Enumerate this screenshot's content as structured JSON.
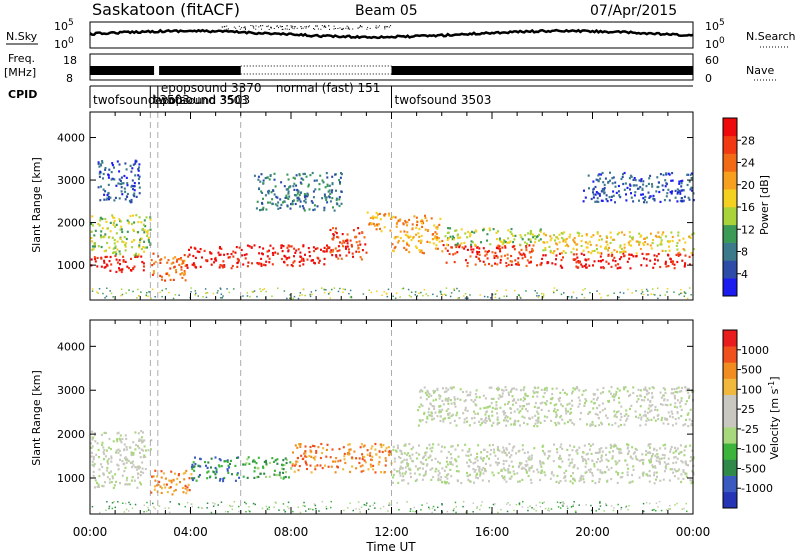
{
  "header": {
    "station": "Saskatoon (fitACF)",
    "beam": "Beam 05",
    "date": "07/Apr/2015"
  },
  "top_strips": {
    "nsky": {
      "label": "N.Sky",
      "tick_top": "10^5",
      "tick_bottom": "10^0",
      "right_label": "N.Search",
      "right_tick_top": "10^5",
      "right_tick_bottom": "10^0"
    },
    "freq": {
      "label_line1": "Freq.",
      "label_line2": "[MHz]",
      "tick_top": "18",
      "tick_bottom": "8",
      "right_label": "Nave",
      "right_tick_top": "60",
      "right_tick_bottom": "0"
    },
    "cpid": {
      "label": "CPID",
      "segments": [
        {
          "name": "twofsound 3503",
          "start_hr": 0.0,
          "end_hr": 2.4
        },
        {
          "name": "twofsound 3503",
          "start_hr": 2.4,
          "end_hr": 2.7
        },
        {
          "name": "epopsound 3370",
          "start_hr": 2.7,
          "end_hr": 6.0
        },
        {
          "name": "normal (fast) 151",
          "start_hr": 6.0,
          "end_hr": 12.0
        },
        {
          "name": "twofsound 3503",
          "start_hr": 12.0,
          "end_hr": 24.0
        }
      ],
      "overlap_label": "epopsound 3503"
    }
  },
  "x_axis": {
    "label": "Time UT",
    "ticks": [
      "00:00",
      "04:00",
      "08:00",
      "12:00",
      "16:00",
      "20:00",
      "00:00"
    ]
  },
  "chart_data": [
    {
      "type": "heatmap",
      "name": "power",
      "ylabel": "Slant Range [km]",
      "yticks": [
        1000,
        2000,
        3000,
        4000
      ],
      "xlim_hr": [
        0,
        24
      ],
      "ylim_km": [
        180,
        4600
      ],
      "colorbar": {
        "label": "Power [dB]",
        "ticks": [
          "4",
          "8",
          "12",
          "16",
          "20",
          "24",
          "28"
        ],
        "colors": [
          "#1c1cf0",
          "#2c4ca8",
          "#3a7a8a",
          "#3b9a55",
          "#a8d43a",
          "#f4d020",
          "#f7a020",
          "#f26a16",
          "#f23a12",
          "#ee0a0a"
        ]
      },
      "echo_bands": [
        {
          "t0": 0.0,
          "t1": 2.2,
          "r0": 850,
          "r1": 1250,
          "level": 9
        },
        {
          "t0": 0.0,
          "t1": 2.4,
          "r0": 1250,
          "r1": 2200,
          "level": 4
        },
        {
          "t0": 2.4,
          "t1": 3.8,
          "r0": 650,
          "r1": 1300,
          "level": 7
        },
        {
          "t0": 3.8,
          "t1": 6.0,
          "r0": 950,
          "r1": 1450,
          "level": 9
        },
        {
          "t0": 6.0,
          "t1": 9.5,
          "r0": 1000,
          "r1": 1500,
          "level": 9
        },
        {
          "t0": 9.5,
          "t1": 11.0,
          "r0": 1150,
          "r1": 1900,
          "level": 8
        },
        {
          "t0": 11.0,
          "t1": 12.0,
          "r0": 1800,
          "r1": 2300,
          "level": 6
        },
        {
          "t0": 12.0,
          "t1": 14.0,
          "r0": 1300,
          "r1": 2200,
          "level": 6
        },
        {
          "t0": 14.0,
          "t1": 18.0,
          "r0": 1000,
          "r1": 1500,
          "level": 8
        },
        {
          "t0": 14.0,
          "t1": 18.0,
          "r0": 1500,
          "r1": 1900,
          "level": 4
        },
        {
          "t0": 18.0,
          "t1": 24.0,
          "r0": 950,
          "r1": 1300,
          "level": 9
        },
        {
          "t0": 18.0,
          "t1": 24.0,
          "r0": 1300,
          "r1": 1800,
          "level": 5
        },
        {
          "t0": 0.3,
          "t1": 2.0,
          "r0": 2500,
          "r1": 3500,
          "level": 1
        },
        {
          "t0": 6.5,
          "t1": 10.0,
          "r0": 2300,
          "r1": 3200,
          "level": 2
        },
        {
          "t0": 19.5,
          "t1": 24.0,
          "r0": 2500,
          "r1": 3200,
          "level": 1
        }
      ]
    },
    {
      "type": "heatmap",
      "name": "velocity",
      "ylabel": "Slant Range [km]",
      "yticks": [
        1000,
        2000,
        3000,
        4000
      ],
      "xlim_hr": [
        0,
        24
      ],
      "ylim_km": [
        180,
        4600
      ],
      "colorbar": {
        "label": "Velocity [m s^-1]",
        "ticks": [
          "1000",
          "500",
          "100",
          "25",
          "-25",
          "-100",
          "-500",
          "-1000"
        ],
        "colors": [
          "#2434b4",
          "#3a5ac0",
          "#2f8a4a",
          "#3cb43c",
          "#a8d87c",
          "#c8c8c0",
          "#c8c8c0",
          "#f0b83c",
          "#f08c20",
          "#f0501c",
          "#e81c1c"
        ]
      },
      "echo_bands": [
        {
          "t0": 0.0,
          "t1": 2.2,
          "r0": 800,
          "r1": 1500,
          "level": 5
        },
        {
          "t0": 0.0,
          "t1": 2.4,
          "r0": 1500,
          "r1": 2100,
          "level": 5
        },
        {
          "t0": 2.4,
          "t1": 4.0,
          "r0": 650,
          "r1": 1200,
          "level": 8
        },
        {
          "t0": 4.0,
          "t1": 6.0,
          "r0": 950,
          "r1": 1500,
          "level": 2
        },
        {
          "t0": 6.0,
          "t1": 8.0,
          "r0": 1000,
          "r1": 1500,
          "level": 3
        },
        {
          "t0": 8.0,
          "t1": 12.0,
          "r0": 1150,
          "r1": 1800,
          "level": 8
        },
        {
          "t0": 12.0,
          "t1": 24.0,
          "r0": 900,
          "r1": 1800,
          "level": 5
        },
        {
          "t0": 13.0,
          "t1": 24.0,
          "r0": 2200,
          "r1": 3100,
          "level": 5
        }
      ]
    }
  ]
}
